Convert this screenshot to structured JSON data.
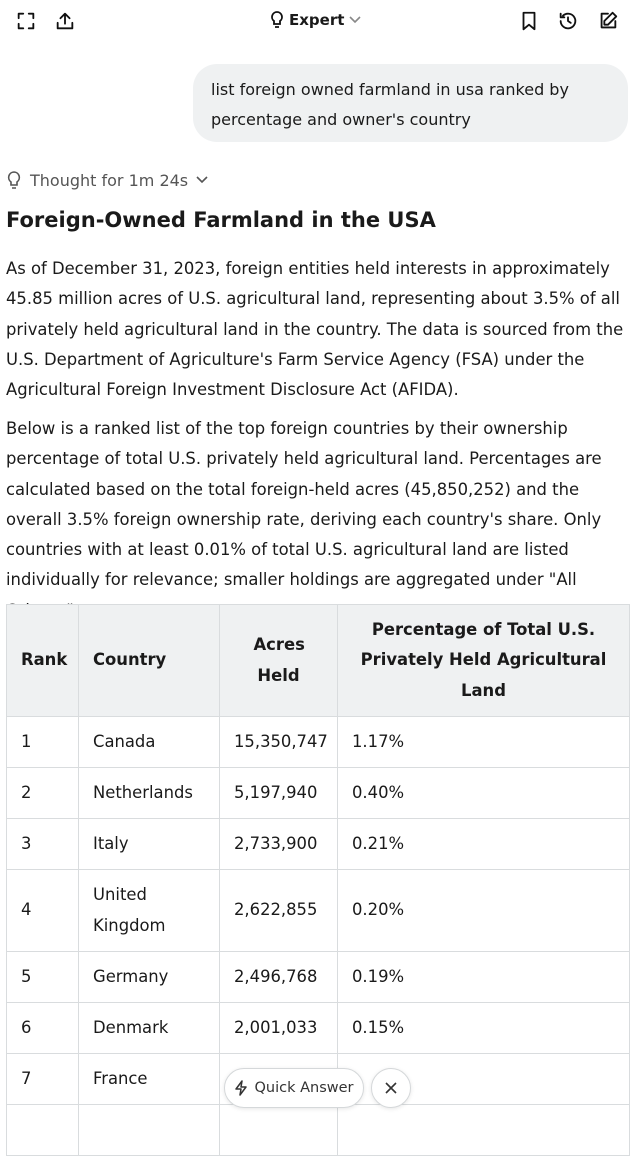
{
  "header": {
    "mode": "Expert"
  },
  "conversation": {
    "user_message": "list foreign owned farmland in usa ranked by percentage and owner's country",
    "thought": "Thought for 1m 24s"
  },
  "response": {
    "title": "Foreign-Owned Farmland in the USA",
    "paragraphs": [
      "As of December 31, 2023, foreign entities held interests in approximately 45.85 million acres of U.S. agricultural land, representing about 3.5% of all privately held agricultural land in the country. The data is sourced from the U.S. Department of Agriculture's Farm Service Agency (FSA) under the Agricultural Foreign Investment Disclosure Act (AFIDA).",
      "Below is a ranked list of the top foreign countries by their ownership percentage of total U.S. privately held agricultural land. Percentages are calculated based on the total foreign-held acres (45,850,252) and the overall 3.5% foreign ownership rate, deriving each country's share. Only countries with at least 0.01% of total U.S. agricultural land are listed individually for relevance; smaller holdings are aggregated under \"All Others.\""
    ],
    "table": {
      "columns": [
        "Rank",
        "Country",
        "Acres Held",
        "Percentage of Total U.S. Privately Held Agricultural Land"
      ],
      "rows": [
        [
          "1",
          "Canada",
          "15,350,747",
          "1.17%"
        ],
        [
          "2",
          "Netherlands",
          "5,197,940",
          "0.40%"
        ],
        [
          "3",
          "Italy",
          "2,733,900",
          "0.21%"
        ],
        [
          "4",
          "United Kingdom",
          "2,622,855",
          "0.20%"
        ],
        [
          "5",
          "Germany",
          "2,496,768",
          "0.19%"
        ],
        [
          "6",
          "Denmark",
          "2,001,033",
          "0.15%"
        ],
        [
          "7",
          "France"
        ]
      ]
    }
  },
  "quick_answer": "Quick Answer"
}
